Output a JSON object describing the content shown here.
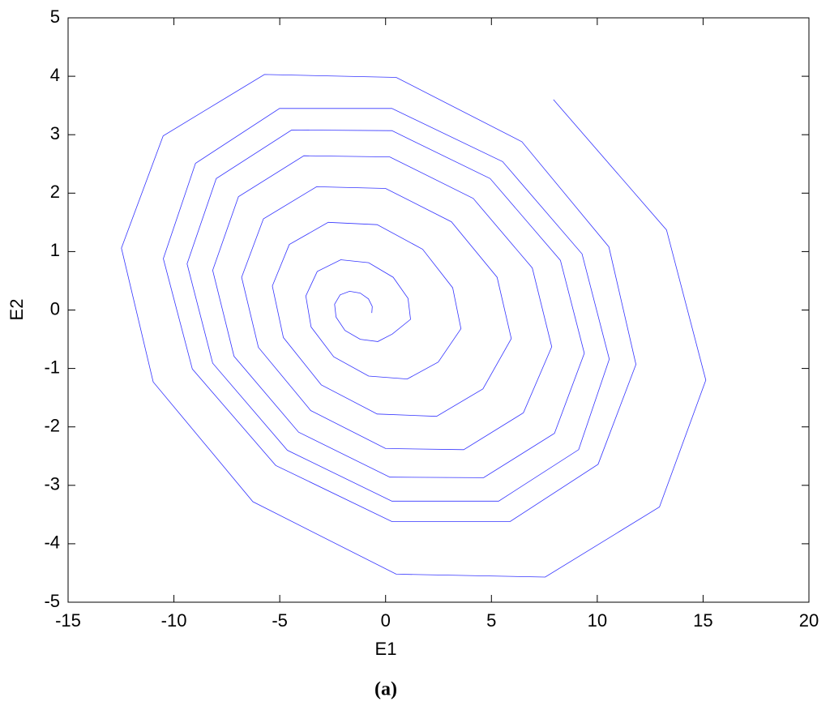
{
  "chart_data": {
    "type": "line",
    "title": "(a)",
    "xlabel": "E1",
    "ylabel": "E2",
    "xlim": [
      -15,
      20
    ],
    "ylim": [
      -5,
      5
    ],
    "xticks": [
      -15,
      -10,
      -5,
      0,
      5,
      10,
      15,
      20
    ],
    "yticks": [
      -5,
      -4,
      -3,
      -2,
      -1,
      0,
      1,
      2,
      3,
      4,
      5
    ],
    "grid": false,
    "x": [
      -0.65,
      -0.63,
      -0.81,
      -1.2,
      -1.7,
      -2.15,
      -2.41,
      -2.34,
      -1.92,
      -1.2,
      -0.37,
      0.32,
      1.18,
      1.06,
      0.36,
      -0.8,
      -2.12,
      -3.23,
      -3.77,
      -3.52,
      -2.45,
      -0.8,
      1.02,
      2.49,
      3.56,
      3.17,
      1.75,
      -0.4,
      -2.71,
      -4.55,
      -5.35,
      -4.83,
      -3.04,
      -0.4,
      2.41,
      4.6,
      5.94,
      5.27,
      3.11,
      0,
      -3.26,
      -5.77,
      -6.8,
      -6.01,
      -3.54,
      0,
      3.69,
      6.51,
      7.85,
      6.93,
      4.14,
      0.2,
      -3.86,
      -6.95,
      -8.17,
      -7.16,
      -4.11,
      0.2,
      4.63,
      7.98,
      9.39,
      8.26,
      4.94,
      0.3,
      -4.44,
      -8,
      -9.38,
      -8.17,
      -4.64,
      0.3,
      5.34,
      9.12,
      10.57,
      9.28,
      5.53,
      0.3,
      -5.01,
      -8.98,
      -10.5,
      -9.13,
      -5.19,
      0.3,
      5.88,
      10.04,
      11.83,
      10.55,
      6.44,
      0.5,
      -5.72,
      -10.51,
      -12.48,
      -10.98,
      -6.27,
      0.5,
      7.54,
      12.94,
      15.13,
      13.27,
      7.93
    ],
    "series": [
      {
        "color": "#0000ff",
        "values": [
          -0.05,
          0.06,
          0.19,
          0.29,
          0.32,
          0.26,
          0.1,
          -0.12,
          -0.35,
          -0.5,
          -0.54,
          -0.41,
          -0.16,
          0.2,
          0.56,
          0.81,
          0.86,
          0.66,
          0.24,
          -0.29,
          -0.8,
          -1.13,
          -1.18,
          -0.89,
          -0.32,
          0.38,
          1.04,
          1.46,
          1.5,
          1.12,
          0.41,
          -0.47,
          -1.28,
          -1.78,
          -1.82,
          -1.35,
          -0.49,
          0.56,
          1.51,
          2.08,
          2.11,
          1.56,
          0.56,
          -0.64,
          -1.72,
          -2.37,
          -2.39,
          -1.76,
          -0.63,
          0.72,
          1.91,
          2.62,
          2.64,
          1.94,
          0.68,
          -0.79,
          -2.09,
          -2.86,
          -2.87,
          -2.11,
          -0.74,
          0.85,
          2.25,
          3.07,
          3.08,
          2.25,
          0.79,
          -0.91,
          -2.4,
          -3.27,
          -3.27,
          -2.39,
          -0.84,
          0.96,
          2.54,
          3.45,
          3.45,
          2.51,
          0.88,
          -1.01,
          -2.66,
          -3.62,
          -3.62,
          -2.64,
          -0.93,
          1.08,
          2.88,
          3.98,
          4.03,
          2.98,
          1.06,
          -1.23,
          -3.28,
          -4.52,
          -4.57,
          -3.37,
          -1.2,
          1.37,
          3.6
        ]
      }
    ]
  }
}
